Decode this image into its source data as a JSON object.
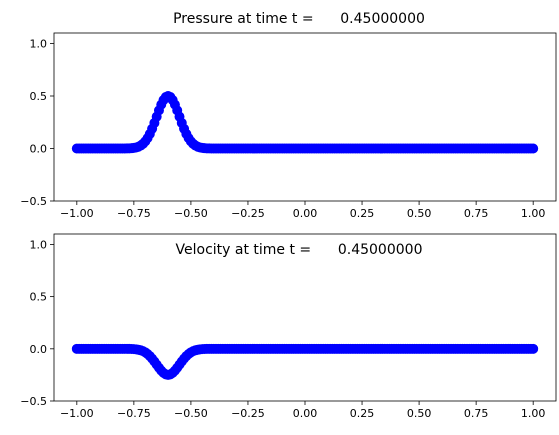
{
  "chart_data": [
    {
      "type": "scatter",
      "title": "Pressure at time t =      0.45000000",
      "xlabel": "",
      "ylabel": "",
      "xlim": [
        -1.1,
        1.1
      ],
      "ylim": [
        -0.5,
        1.1
      ],
      "xticks": [
        -1.0,
        -0.75,
        -0.5,
        -0.25,
        0.0,
        0.25,
        0.5,
        0.75,
        1.0
      ],
      "xtick_labels": [
        "−1.00",
        "−0.75",
        "−0.50",
        "−0.25",
        "0.00",
        "0.25",
        "0.50",
        "0.75",
        "1.00"
      ],
      "yticks": [
        -0.5,
        0.0,
        0.5,
        1.0
      ],
      "ytick_labels": [
        "−0.5",
        "0.0",
        "0.5",
        "1.0"
      ],
      "grid": false,
      "color": "#0000ff",
      "marker": "circle",
      "series": [
        {
          "x_range": [
            -1.0,
            1.0
          ],
          "point_count": 201,
          "profile": {
            "shape": "gaussian",
            "center": -0.6,
            "peak": 0.5,
            "width": 0.05
          }
        }
      ]
    },
    {
      "type": "scatter",
      "title": "Velocity at time t =      0.45000000",
      "xlabel": "",
      "ylabel": "",
      "xlim": [
        -1.1,
        1.1
      ],
      "ylim": [
        -0.5,
        1.1
      ],
      "xticks": [
        -1.0,
        -0.75,
        -0.5,
        -0.25,
        0.0,
        0.25,
        0.5,
        0.75,
        1.0
      ],
      "xtick_labels": [
        "−1.00",
        "−0.75",
        "−0.50",
        "−0.25",
        "0.00",
        "0.25",
        "0.50",
        "0.75",
        "1.00"
      ],
      "yticks": [
        -0.5,
        0.0,
        0.5,
        1.0
      ],
      "ytick_labels": [
        "−0.5",
        "0.0",
        "0.5",
        "1.0"
      ],
      "grid": false,
      "color": "#0000ff",
      "marker": "circle",
      "series": [
        {
          "x_range": [
            -1.0,
            1.0
          ],
          "point_count": 201,
          "profile": {
            "shape": "gaussian",
            "center": -0.6,
            "peak": -0.25,
            "width": 0.05
          }
        }
      ]
    }
  ]
}
